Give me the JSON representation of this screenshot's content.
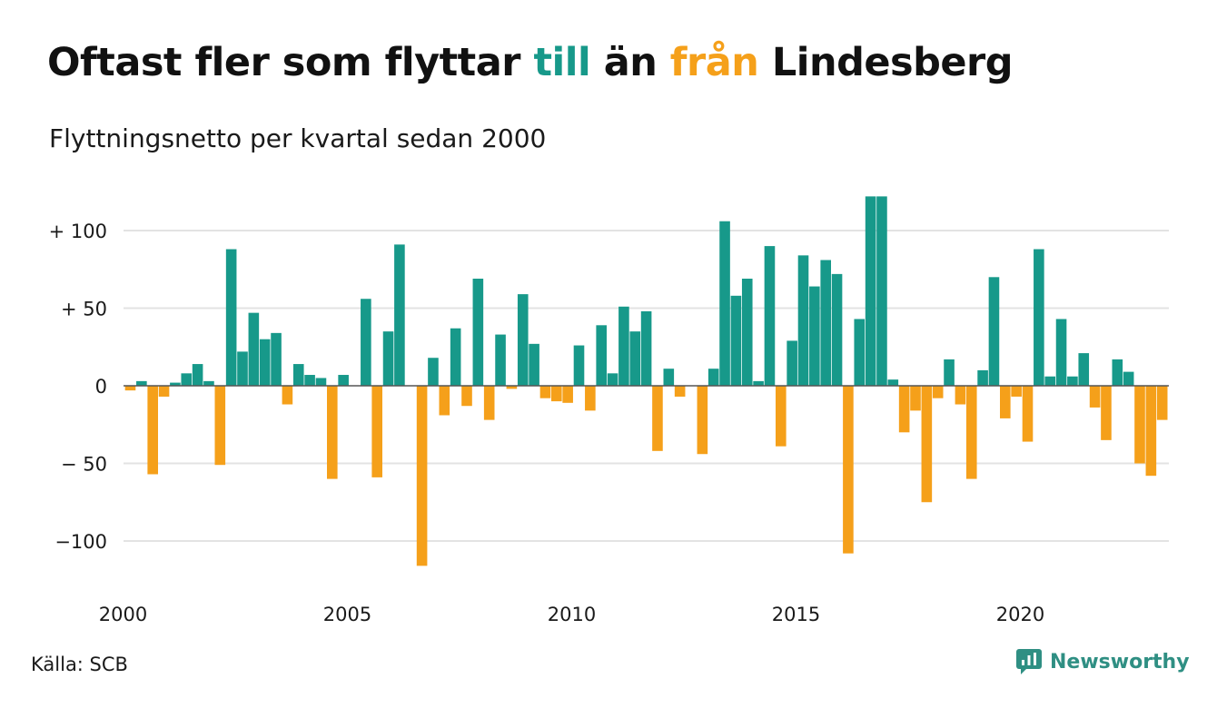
{
  "title": {
    "prefix": "Oftast fler som flyttar ",
    "word_in": "till",
    "middle": " än ",
    "word_out": "från",
    "suffix": " Lindesberg"
  },
  "subtitle": "Flyttningsnetto per kvartal sedan 2000",
  "source": "Källa: SCB",
  "brand": {
    "name": "Newsworthy",
    "icon": "newsworthy-logo-icon"
  },
  "colors": {
    "positive": "#17998a",
    "negative": "#f5a01a",
    "grid": "#e3e3e3",
    "zero": "#555555"
  },
  "chart_data": {
    "type": "bar",
    "title": "Oftast fler som flyttar till än från Lindesberg",
    "subtitle": "Flyttningsnetto per kvartal sedan 2000",
    "x_start": "2000-Q1",
    "x_tick_labels": [
      "2000",
      "2005",
      "2010",
      "2015",
      "2020"
    ],
    "y_tick_values": [
      100,
      50,
      0,
      -50,
      -100
    ],
    "y_tick_labels": [
      "+ 100",
      "+  50",
      "0",
      "− 50",
      "−100"
    ],
    "ylim": [
      -130,
      122
    ],
    "grid": true,
    "legend": "none",
    "values": [
      -3,
      3,
      -57,
      -7,
      2,
      8,
      14,
      3,
      -51,
      88,
      22,
      47,
      30,
      34,
      -12,
      14,
      7,
      5,
      -60,
      7,
      0,
      56,
      -59,
      35,
      91,
      0,
      -116,
      18,
      -19,
      37,
      -13,
      69,
      -22,
      33,
      -2,
      59,
      27,
      -8,
      -10,
      -11,
      26,
      -16,
      39,
      8,
      51,
      35,
      48,
      -42,
      11,
      -7,
      0,
      -44,
      11,
      106,
      58,
      69,
      3,
      90,
      -39,
      29,
      84,
      64,
      81,
      72,
      -108,
      43,
      122,
      122,
      4,
      -30,
      -16,
      -75,
      -8,
      17,
      -12,
      -60,
      10,
      70,
      -21,
      -7,
      -36,
      88,
      6,
      43,
      6,
      21,
      -14,
      -35,
      17,
      9,
      -50,
      -58,
      -22
    ]
  }
}
